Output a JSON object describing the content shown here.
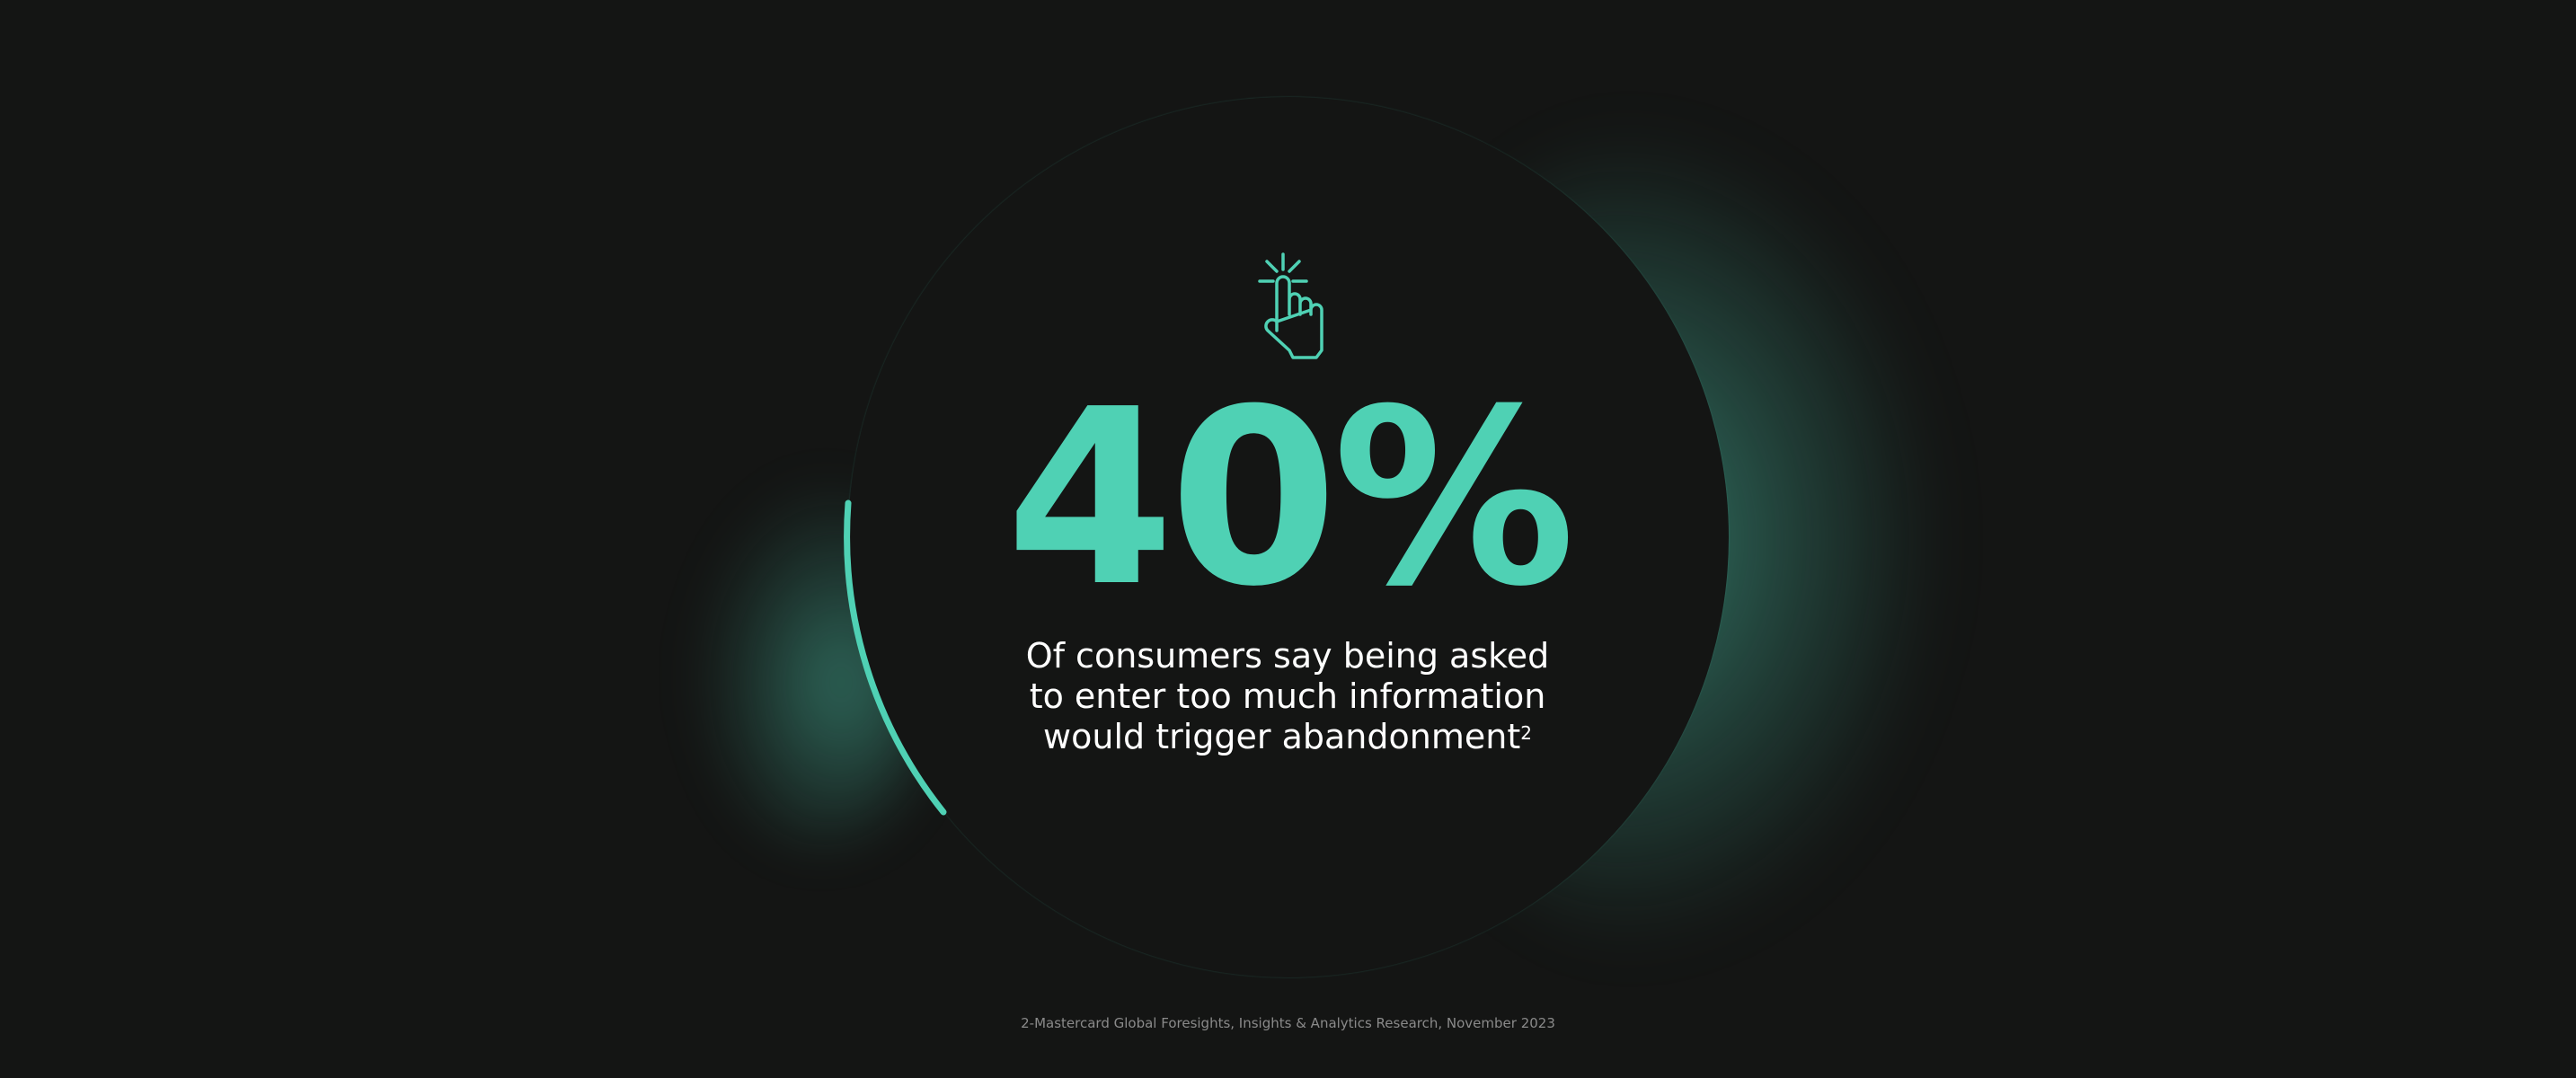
{
  "stat": {
    "value": "40%",
    "icon": "hand-pointer-click-icon"
  },
  "description": {
    "text": "Of consumers say being asked to enter too much information would trigger abandonment",
    "footnote_marker": "2"
  },
  "footer": {
    "source": "2-Mastercard Global Foresights, Insights & Analytics Research, November 2023"
  },
  "colors": {
    "accent": "#4fd1b4",
    "background": "#141514",
    "text": "#ffffff",
    "footer_text": "#8a8a8a"
  }
}
